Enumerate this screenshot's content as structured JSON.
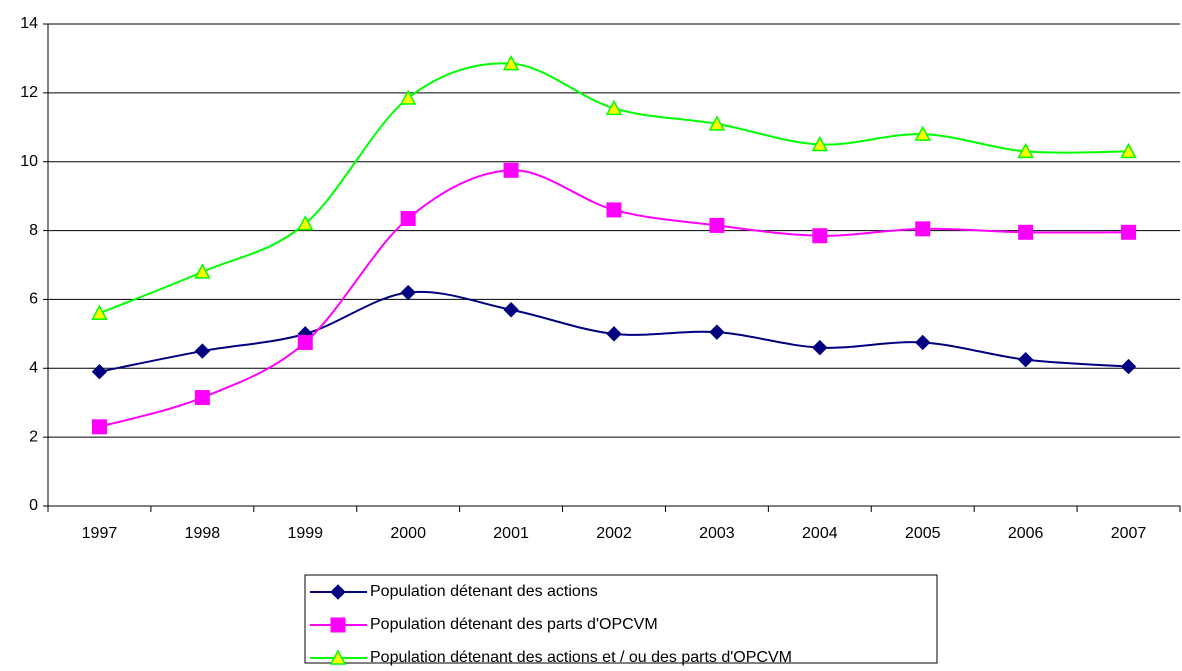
{
  "chart_data": {
    "type": "line",
    "categories": [
      "1997",
      "1998",
      "1999",
      "2000",
      "2001",
      "2002",
      "2003",
      "2004",
      "2005",
      "2006",
      "2007"
    ],
    "series": [
      {
        "name": "Population détenant des actions",
        "color": "#000080",
        "marker": "diamond",
        "marker_fill": "#000080",
        "values": [
          3.9,
          4.5,
          5.0,
          6.2,
          5.7,
          5.0,
          5.05,
          4.6,
          4.75,
          4.25,
          4.05
        ]
      },
      {
        "name": "Population détenant des parts d'OPCVM",
        "color": "#ff00ff",
        "marker": "square",
        "marker_fill": "#ff00ff",
        "values": [
          2.3,
          3.15,
          4.75,
          8.35,
          9.75,
          8.6,
          8.15,
          7.85,
          8.05,
          7.95,
          7.95
        ]
      },
      {
        "name": "Population détenant des actions et / ou des parts d'OPCVM",
        "color": "#00ff00",
        "marker": "triangle",
        "marker_fill": "#ffff00",
        "values": [
          5.6,
          6.8,
          8.2,
          11.85,
          12.85,
          11.55,
          11.1,
          10.5,
          10.8,
          10.3,
          10.3
        ]
      }
    ],
    "ylim": [
      0,
      14
    ],
    "yticks": [
      0,
      2,
      4,
      6,
      8,
      10,
      12,
      14
    ],
    "grid": true,
    "smooth": true,
    "legend": "bottom"
  }
}
